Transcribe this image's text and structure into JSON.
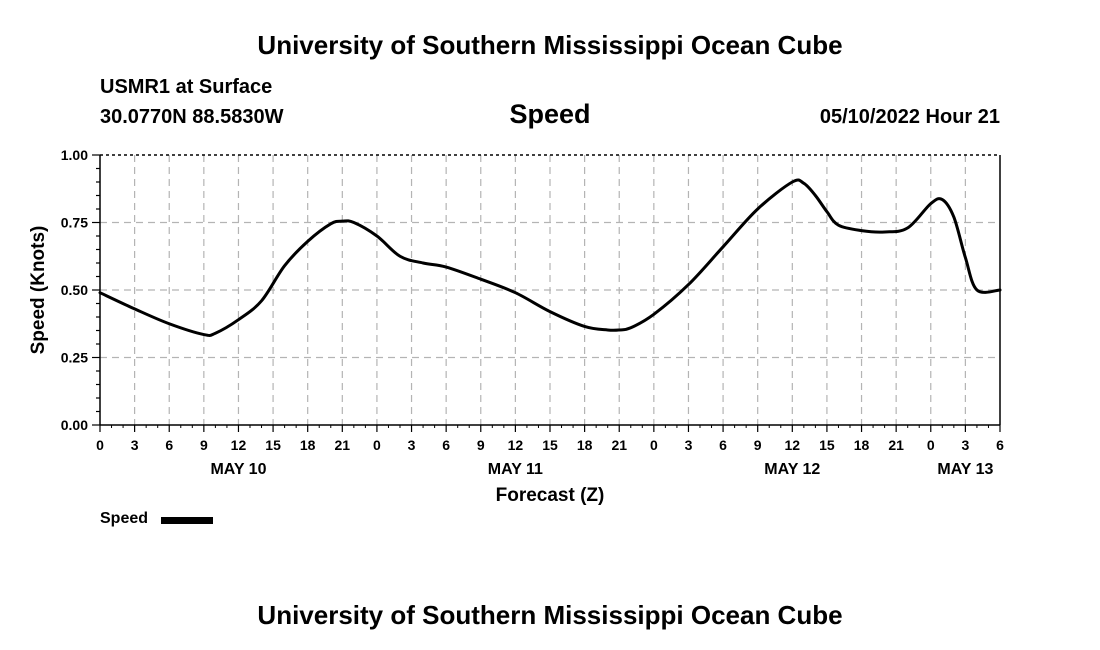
{
  "header": {
    "title": "University of Southern Mississippi Ocean Cube",
    "station": "USMR1 at Surface",
    "coords": "30.0770N  88.5830W",
    "variable": "Speed",
    "datetime": "05/10/2022 Hour 21"
  },
  "footer": {
    "title": "University of Southern Mississippi Ocean Cube"
  },
  "legend": {
    "label": "Speed"
  },
  "chart_data": {
    "type": "line",
    "title": "Speed",
    "xlabel": "Forecast (Z)",
    "ylabel": "Speed (Knots)",
    "ylim": [
      0,
      1.0
    ],
    "yticks": [
      "0.00",
      "0.25",
      "0.50",
      "0.75",
      "1.00"
    ],
    "xlim": [
      0,
      78
    ],
    "xtick_labels": [
      "0",
      "3",
      "6",
      "9",
      "12",
      "15",
      "18",
      "21",
      "0",
      "3",
      "6",
      "9",
      "12",
      "15",
      "18",
      "21",
      "0",
      "3",
      "6",
      "9",
      "12",
      "15",
      "18",
      "21",
      "0",
      "3",
      "6"
    ],
    "day_labels": [
      {
        "label": "MAY 10",
        "hour": 12
      },
      {
        "label": "MAY 11",
        "hour": 36
      },
      {
        "label": "MAY 12",
        "hour": 60
      },
      {
        "label": "MAY 13",
        "hour": 75
      }
    ],
    "grid": true,
    "legend_position": "bottom-left",
    "series": [
      {
        "name": "Speed",
        "color": "#000000",
        "x": [
          0,
          3,
          6,
          9,
          10,
          12,
          14,
          16,
          18,
          20,
          21,
          22,
          24,
          26,
          28,
          30,
          33,
          36,
          39,
          42,
          44,
          45,
          46,
          48,
          51,
          54,
          57,
          60,
          61,
          62,
          63,
          64,
          66,
          68,
          70,
          72,
          73,
          74,
          75,
          76,
          78
        ],
        "y": [
          0.49,
          0.43,
          0.375,
          0.335,
          0.34,
          0.39,
          0.46,
          0.59,
          0.68,
          0.745,
          0.755,
          0.75,
          0.7,
          0.625,
          0.6,
          0.585,
          0.54,
          0.49,
          0.42,
          0.365,
          0.352,
          0.352,
          0.36,
          0.41,
          0.52,
          0.66,
          0.8,
          0.9,
          0.895,
          0.85,
          0.79,
          0.74,
          0.72,
          0.715,
          0.73,
          0.82,
          0.835,
          0.77,
          0.62,
          0.5,
          0.5
        ]
      }
    ]
  }
}
